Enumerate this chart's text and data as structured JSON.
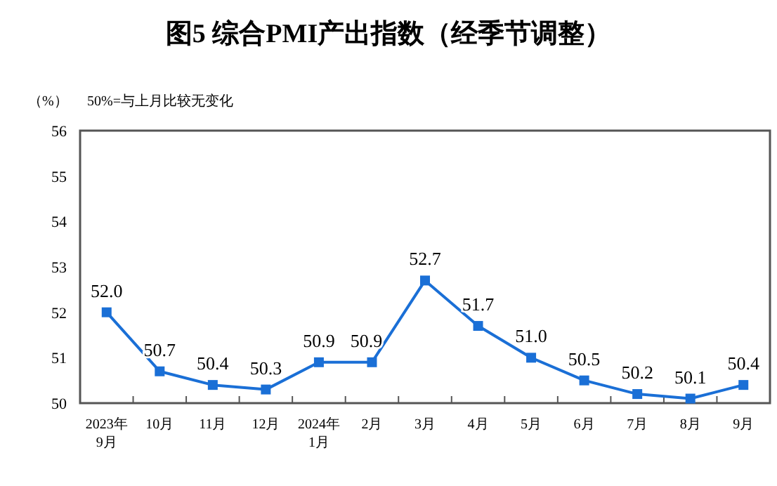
{
  "chart_data": {
    "type": "line",
    "title": "图5  综合PMI产出指数（经季节调整）",
    "ylabel": "（%）",
    "annotations": [
      "50%=与上月比较无变化"
    ],
    "categories": [
      "2023年\n9月",
      "10月",
      "11月",
      "12月",
      "2024年\n1月",
      "2月",
      "3月",
      "4月",
      "5月",
      "6月",
      "7月",
      "8月",
      "9月"
    ],
    "values": [
      52.0,
      50.7,
      50.4,
      50.3,
      50.9,
      50.9,
      52.7,
      51.7,
      51.0,
      50.5,
      50.2,
      50.1,
      50.4
    ],
    "value_labels": [
      "52.0",
      "50.7",
      "50.4",
      "50.3",
      "50.9",
      "50.9",
      "52.7",
      "51.7",
      "51.0",
      "50.5",
      "50.2",
      "50.1",
      "50.4"
    ],
    "color": "#1a6fd6",
    "marker": "square",
    "line_style": "solid",
    "ylim": [
      50,
      56
    ],
    "yticks": [
      50,
      51,
      52,
      53,
      54,
      55,
      56
    ]
  }
}
